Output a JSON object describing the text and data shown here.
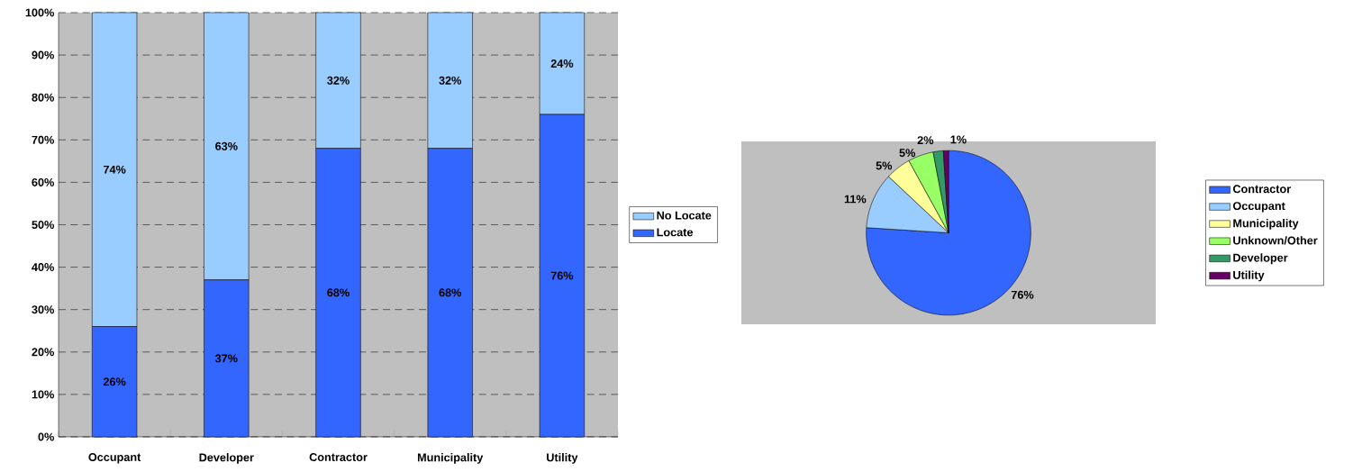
{
  "chart_data": [
    {
      "type": "bar",
      "stacked": true,
      "categories": [
        "Occupant",
        "Developer",
        "Contractor",
        "Municipality",
        "Utility"
      ],
      "series": [
        {
          "name": "Locate",
          "color": "#3366ff",
          "values": [
            26,
            37,
            68,
            68,
            76
          ],
          "value_labels": [
            "26%",
            "37%",
            "68%",
            "68%",
            "76%"
          ]
        },
        {
          "name": "No Locate",
          "color": "#99ccff",
          "values": [
            74,
            63,
            32,
            32,
            24
          ],
          "value_labels": [
            "74%",
            "63%",
            "32%",
            "32%",
            "24%"
          ]
        }
      ],
      "ylim": [
        0,
        100
      ],
      "yticks": [
        {
          "value": 0,
          "label": "0%"
        },
        {
          "value": 10,
          "label": "10%"
        },
        {
          "value": 20,
          "label": "20%"
        },
        {
          "value": 30,
          "label": "30%"
        },
        {
          "value": 40,
          "label": "40%"
        },
        {
          "value": 50,
          "label": "50%"
        },
        {
          "value": 60,
          "label": "60%"
        },
        {
          "value": 70,
          "label": "70%"
        },
        {
          "value": 80,
          "label": "80%"
        },
        {
          "value": 90,
          "label": "90%"
        },
        {
          "value": 100,
          "label": "100%"
        }
      ],
      "grid": "y",
      "legend": "right"
    },
    {
      "type": "pie",
      "categories": [
        "Contractor",
        "Occupant",
        "Municipality",
        "Unknown/Other",
        "Developer",
        "Utility"
      ],
      "values": [
        76,
        11,
        5,
        5,
        2,
        1
      ],
      "value_labels": [
        "76%",
        "11%",
        "5%",
        "5%",
        "2%",
        "1%"
      ],
      "colors": [
        "#3366ff",
        "#99ccff",
        "#ffff99",
        "#99ff66",
        "#339966",
        "#660066"
      ],
      "legend": "right"
    }
  ]
}
